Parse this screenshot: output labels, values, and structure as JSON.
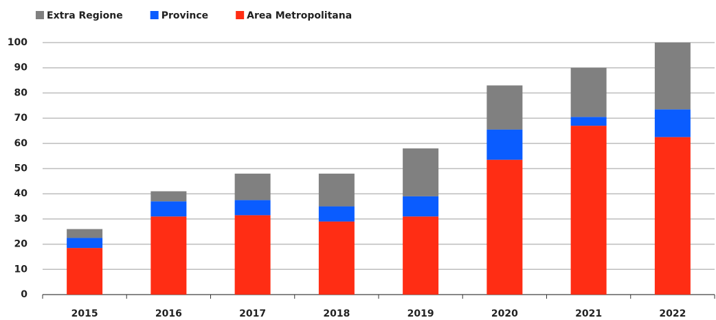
{
  "chart_data": {
    "type": "stacked_bar",
    "categories": [
      "2015",
      "2016",
      "2017",
      "2018",
      "2019",
      "2020",
      "2021",
      "2022"
    ],
    "series": [
      {
        "name": "Extra Regione",
        "color": "#808080",
        "values": [
          3.5,
          4,
          10.5,
          13,
          19,
          17.5,
          19.5,
          26.5
        ]
      },
      {
        "name": "Province",
        "color": "#0a5cff",
        "values": [
          4,
          6,
          6,
          6,
          8,
          12,
          3.5,
          11
        ]
      },
      {
        "name": "Area Metropolitana",
        "color": "#ff2d14",
        "values": [
          18.5,
          31,
          31.5,
          29,
          31,
          53.5,
          67,
          62.5
        ]
      }
    ],
    "ylim": [
      0,
      100
    ],
    "yticks": [
      0,
      10,
      20,
      30,
      40,
      50,
      60,
      70,
      80,
      90,
      100
    ],
    "grid": true
  }
}
